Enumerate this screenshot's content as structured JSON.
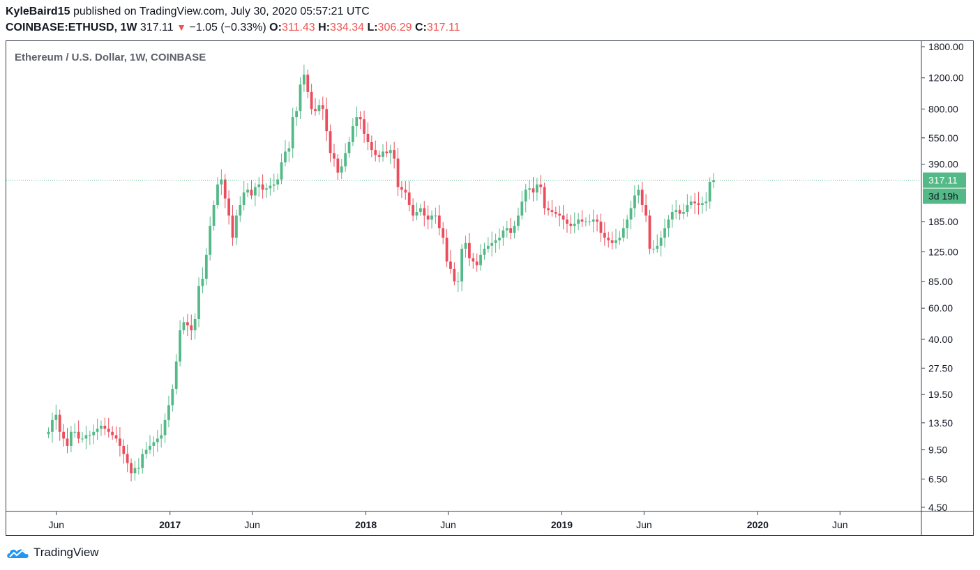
{
  "header": {
    "author": "KyleBaird15",
    "published_text": " published on TradingView.com, July 30, 2020 05:57:21 UTC",
    "symbol": "COINBASE:ETHUSD, 1W",
    "last_price": "317.11",
    "change_arrow": "▼",
    "change": "−1.05 (−0.33%)",
    "o_label": "O:",
    "o_value": "311.43",
    "h_label": "H:",
    "h_value": "334.34",
    "l_label": "L:",
    "l_value": "306.29",
    "c_label": "C:",
    "c_value": "317.11"
  },
  "footer": {
    "brand": "TradingView"
  },
  "colors": {
    "up": "#53b987",
    "down": "#eb4d5c",
    "axis": "#363c4e",
    "text": "#131722",
    "price_tag": "#53b987"
  },
  "chart_data": {
    "type": "candlestick",
    "title": "Ethereum / U.S. Dollar, 1W, COINBASE",
    "scale": "log",
    "ylim": [
      4.5,
      1800
    ],
    "y_ticks": [
      "1800.00",
      "1200.00",
      "800.00",
      "550.00",
      "390.00",
      "185.00",
      "125.00",
      "85.00",
      "60.00",
      "40.00",
      "27.50",
      "19.50",
      "13.50",
      "9.50",
      "6.50",
      "4.50"
    ],
    "x_ticks": [
      {
        "label": "Jun",
        "t": 2016.42,
        "bold": false
      },
      {
        "label": "2017",
        "t": 2017.0,
        "bold": true
      },
      {
        "label": "Jun",
        "t": 2017.42,
        "bold": false
      },
      {
        "label": "2018",
        "t": 2018.0,
        "bold": true
      },
      {
        "label": "Jun",
        "t": 2018.42,
        "bold": false
      },
      {
        "label": "2019",
        "t": 2019.0,
        "bold": true
      },
      {
        "label": "Jun",
        "t": 2019.42,
        "bold": false
      },
      {
        "label": "2020",
        "t": 2020.0,
        "bold": true
      },
      {
        "label": "Jun",
        "t": 2020.42,
        "bold": false
      }
    ],
    "xlim": [
      2016.2,
      2020.8
    ],
    "last_price": 317.11,
    "last_price_label": "317.11",
    "countdown_label": "3d 19h",
    "start_t": 2016.38,
    "week": 0.01918,
    "closes": [
      12,
      14,
      15,
      12,
      11,
      10,
      12,
      12,
      11,
      11,
      11.5,
      11.5,
      12,
      12.5,
      13,
      12.5,
      12,
      11.5,
      11,
      10,
      9,
      8,
      7,
      7.5,
      7.5,
      9,
      9.5,
      10,
      10.5,
      11,
      11.5,
      14,
      17,
      21,
      30,
      45,
      50,
      48,
      45,
      52,
      80,
      88,
      120,
      175,
      230,
      300,
      320,
      250,
      200,
      150,
      200,
      230,
      270,
      280,
      260,
      290,
      300,
      280,
      285,
      295,
      300,
      320,
      400,
      460,
      480,
      720,
      780,
      1100,
      1250,
      1000,
      800,
      780,
      840,
      800,
      600,
      450,
      420,
      350,
      380,
      450,
      520,
      640,
      720,
      700,
      580,
      520,
      470,
      440,
      430,
      460,
      450,
      470,
      420,
      290,
      280,
      270,
      230,
      200,
      210,
      220,
      200,
      190,
      200,
      200,
      170,
      150,
      110,
      100,
      85,
      85,
      130,
      140,
      115,
      110,
      105,
      120,
      130,
      135,
      140,
      145,
      150,
      165,
      170,
      160,
      175,
      200,
      240,
      280,
      285,
      270,
      300,
      290,
      220,
      215,
      210,
      205,
      200,
      190,
      180,
      175,
      180,
      190,
      185,
      185,
      185,
      190,
      185,
      160,
      150,
      145,
      140,
      145,
      150,
      170,
      190,
      220,
      260,
      280,
      230,
      200,
      130,
      130,
      135,
      150,
      170,
      190,
      210,
      215,
      205,
      210,
      230,
      240,
      235,
      230,
      235,
      240,
      310,
      317.11
    ]
  }
}
